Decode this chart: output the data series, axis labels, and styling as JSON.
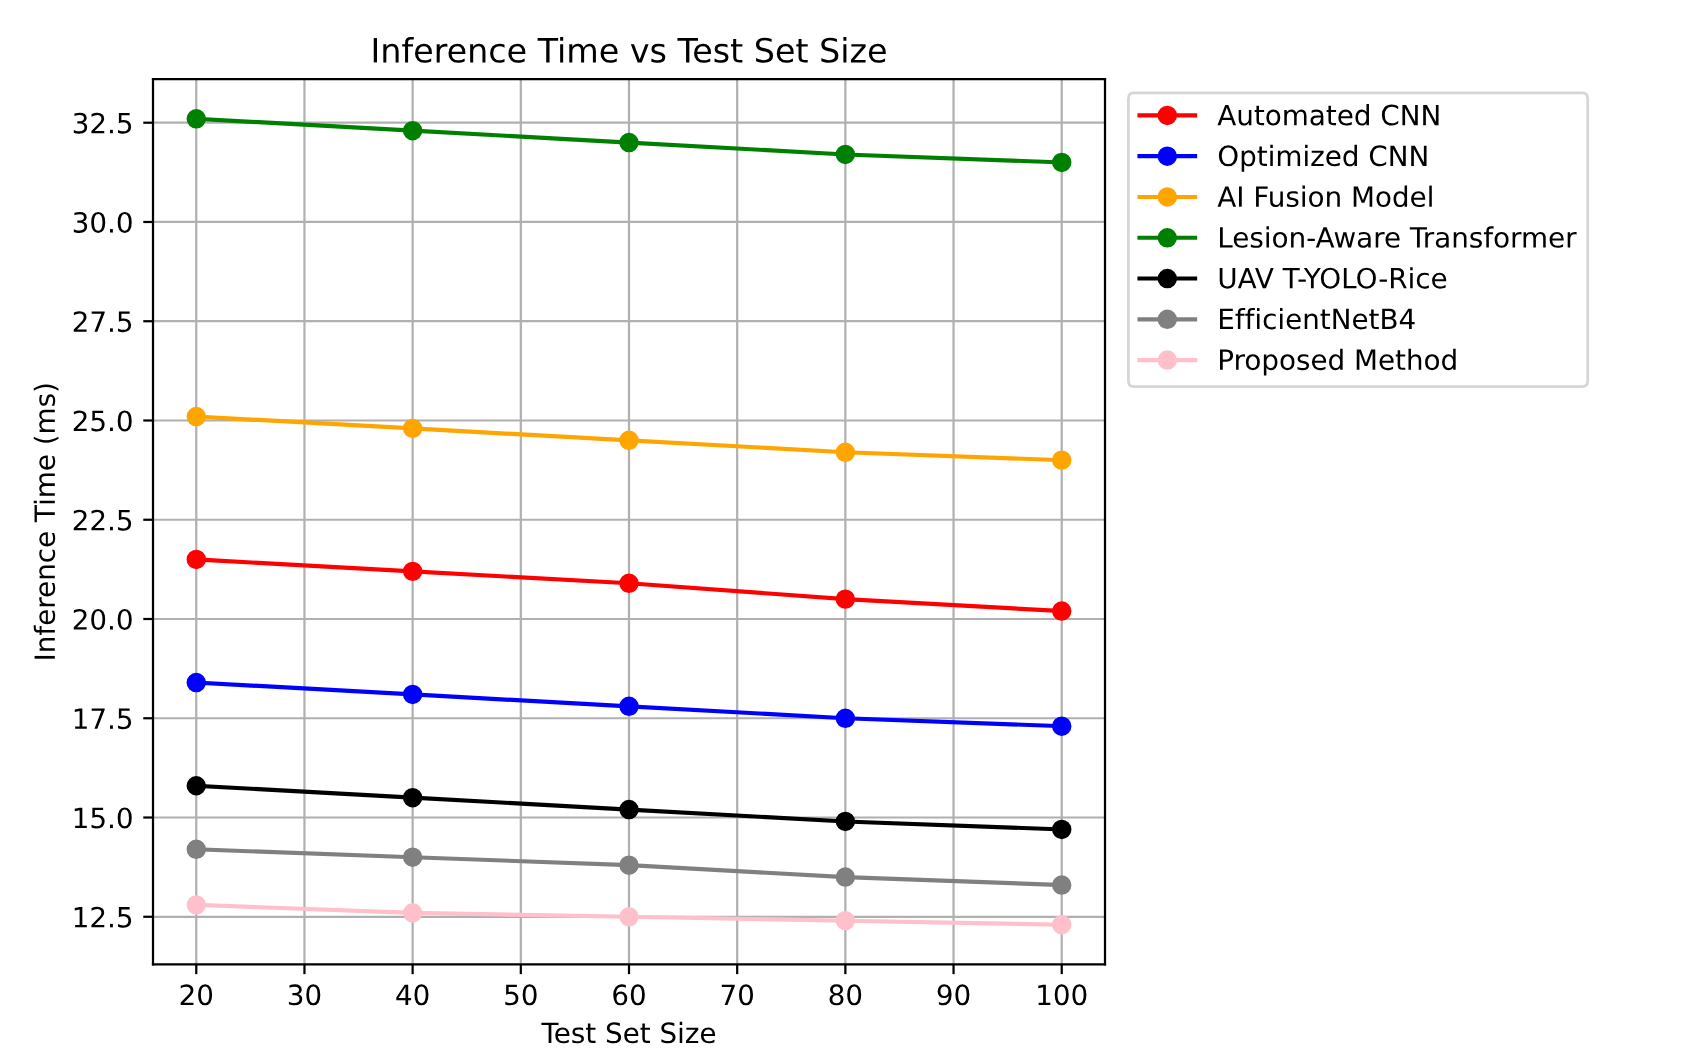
{
  "chart_data": {
    "type": "line",
    "title": "Inference Time vs Test Set Size",
    "xlabel": "Test Set Size",
    "ylabel": "Inference Time (ms)",
    "x": [
      20,
      40,
      60,
      80,
      100
    ],
    "series": [
      {
        "name": "Automated CNN",
        "color": "#ff0000",
        "values": [
          21.5,
          21.2,
          20.9,
          20.5,
          20.2
        ]
      },
      {
        "name": "Optimized CNN",
        "color": "#0000ff",
        "values": [
          18.4,
          18.1,
          17.8,
          17.5,
          17.3
        ]
      },
      {
        "name": "AI Fusion Model",
        "color": "#ffa500",
        "values": [
          25.1,
          24.8,
          24.5,
          24.2,
          24.0
        ]
      },
      {
        "name": "Lesion-Aware Transformer",
        "color": "#008000",
        "values": [
          32.6,
          32.3,
          32.0,
          31.7,
          31.5
        ]
      },
      {
        "name": "UAV T-YOLO-Rice",
        "color": "#000000",
        "values": [
          15.8,
          15.5,
          15.2,
          14.9,
          14.7
        ]
      },
      {
        "name": "EfficientNetB4",
        "color": "#808080",
        "values": [
          14.2,
          14.0,
          13.8,
          13.5,
          13.3
        ]
      },
      {
        "name": "Proposed Method",
        "color": "#ffc0cb",
        "values": [
          12.8,
          12.6,
          12.5,
          12.4,
          12.3
        ]
      }
    ],
    "xlim": [
      16,
      104
    ],
    "xticks": [
      20,
      30,
      40,
      50,
      60,
      70,
      80,
      90,
      100
    ],
    "ylim": [
      11.3,
      33.6
    ],
    "yticks": [
      12.5,
      {
        "value": 15,
        "label": "15.0"
      },
      17.5,
      {
        "value": 20,
        "label": "20.0"
      },
      22.5,
      {
        "value": 25,
        "label": "25.0"
      },
      27.5,
      {
        "value": 30,
        "label": "30.0"
      },
      32.5
    ],
    "grid": true,
    "legend": "top right",
    "marker": "circle",
    "line_style": "solid"
  }
}
